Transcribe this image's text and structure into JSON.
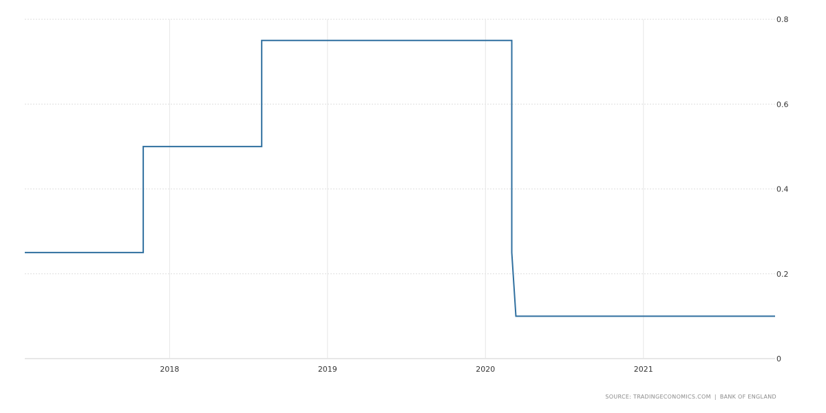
{
  "chart_data": {
    "type": "line",
    "title": "",
    "xlabel": "",
    "ylabel": "",
    "step": true,
    "x_ticks": [
      "2018",
      "2019",
      "2020",
      "2021"
    ],
    "y_ticks": [
      "0",
      "0.2",
      "0.4",
      "0.6",
      "0.8"
    ],
    "ylim": [
      0,
      0.8
    ],
    "xlim": [
      "2017-02",
      "2021-11"
    ],
    "grid": true,
    "y_axis_side": "right",
    "series": [
      {
        "color": "#2f6f9f",
        "points": [
          {
            "x": "2017-02",
            "y": 0.25
          },
          {
            "x": "2017-11",
            "y": 0.25
          },
          {
            "x": "2017-11",
            "y": 0.5
          },
          {
            "x": "2018-08",
            "y": 0.5
          },
          {
            "x": "2018-08",
            "y": 0.75
          },
          {
            "x": "2020-03",
            "y": 0.75
          },
          {
            "x": "2020-03",
            "y": 0.25
          },
          {
            "x": "2020-03",
            "y": 0.1
          },
          {
            "x": "2021-11",
            "y": 0.1
          }
        ]
      }
    ]
  },
  "source": {
    "left": "SOURCE: TRADINGECONOMICS.COM",
    "separator": "|",
    "right": "BANK OF ENGLAND"
  }
}
